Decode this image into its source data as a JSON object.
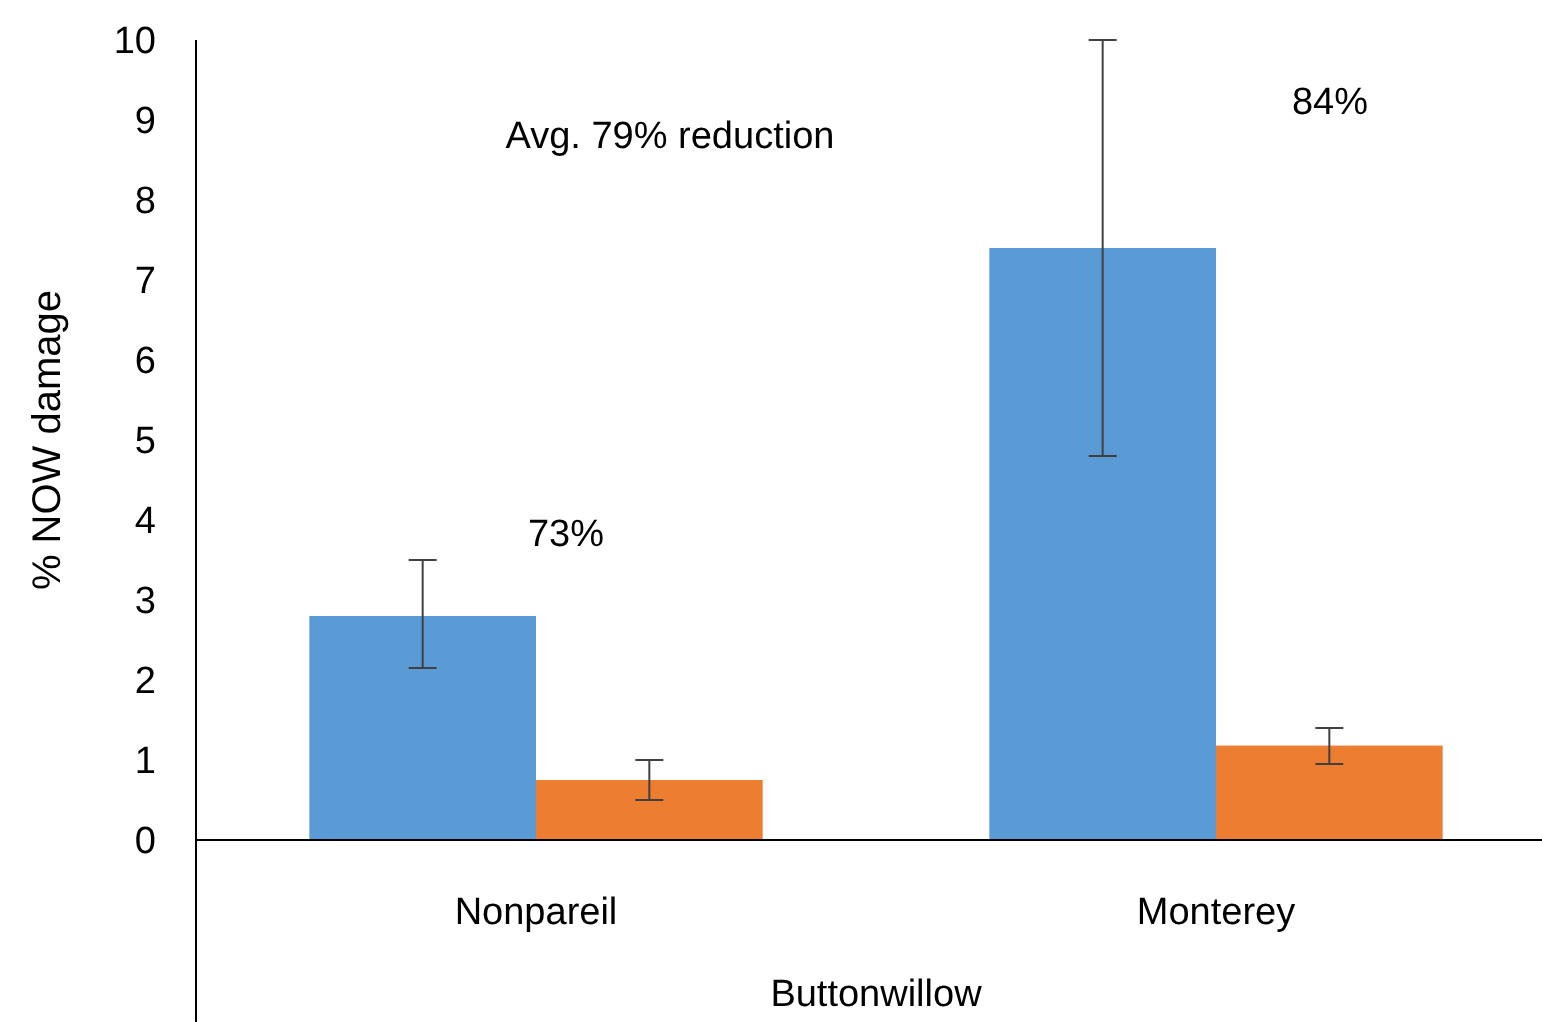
{
  "chart_data": {
    "type": "bar",
    "ylabel": "% NOW damage",
    "xlabel": "Buttonwillow",
    "categories": [
      "Nonpareil",
      "Monterey"
    ],
    "series": [
      {
        "color": "#5b9bd5",
        "values": [
          2.8,
          7.4
        ],
        "errors": [
          [
            2.15,
            3.5
          ],
          [
            4.8,
            10
          ]
        ]
      },
      {
        "color": "#ed7d31",
        "values": [
          0.75,
          1.18
        ],
        "errors": [
          [
            0.5,
            1.0
          ],
          [
            0.95,
            1.4
          ]
        ]
      }
    ],
    "ylim": [
      0,
      10
    ],
    "yticks": [
      0,
      1,
      2,
      3,
      4,
      5,
      6,
      7,
      8,
      9,
      10
    ],
    "grid": false,
    "annotations": [
      "Avg. 79% reduction",
      "73%",
      "84%"
    ]
  }
}
